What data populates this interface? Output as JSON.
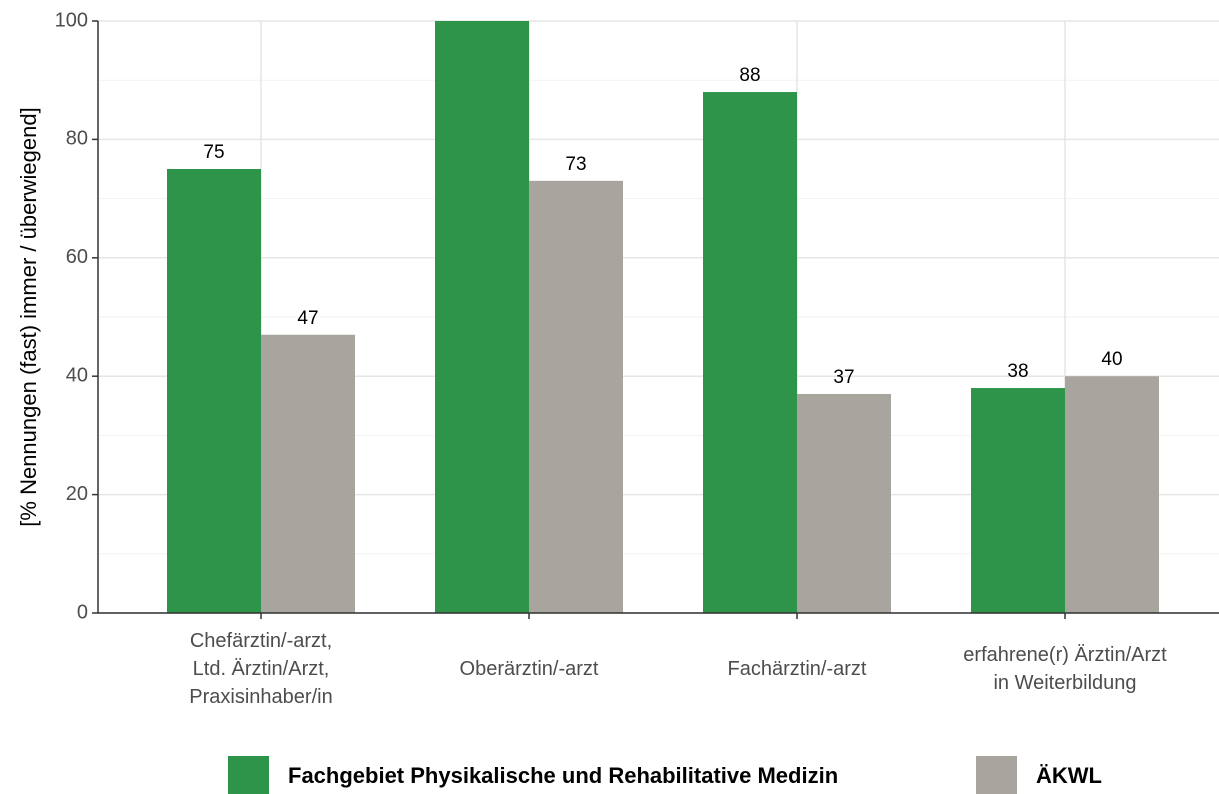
{
  "chart_data": {
    "type": "bar",
    "y_label": "[% Nennungen (fast) immer / überwiegend]",
    "categories": [
      [
        "Chefärztin/-arzt,",
        "Ltd. Ärztin/Arzt,",
        "Praxisinhaber/in"
      ],
      [
        "Oberärztin/-arzt"
      ],
      [
        "Fachärztin/-arzt"
      ],
      [
        "erfahrene(r) Ärztin/Arzt",
        "in Weiterbildung"
      ]
    ],
    "series": [
      {
        "name": "Fachgebiet Physikalische und Rehabilitative Medizin",
        "color": "#2e944a",
        "values": [
          75,
          100,
          88,
          38
        ],
        "value_labels": [
          "75",
          null,
          "88",
          "38"
        ]
      },
      {
        "name": "ÄKWL",
        "color": "#a8a59e",
        "values": [
          47,
          73,
          37,
          40
        ],
        "value_labels": [
          "47",
          "73",
          "37",
          "40"
        ]
      }
    ],
    "ylim": [
      0,
      100
    ],
    "yticks": [
      0,
      20,
      40,
      60,
      80,
      100
    ],
    "grid": true,
    "legend": "bottom"
  }
}
